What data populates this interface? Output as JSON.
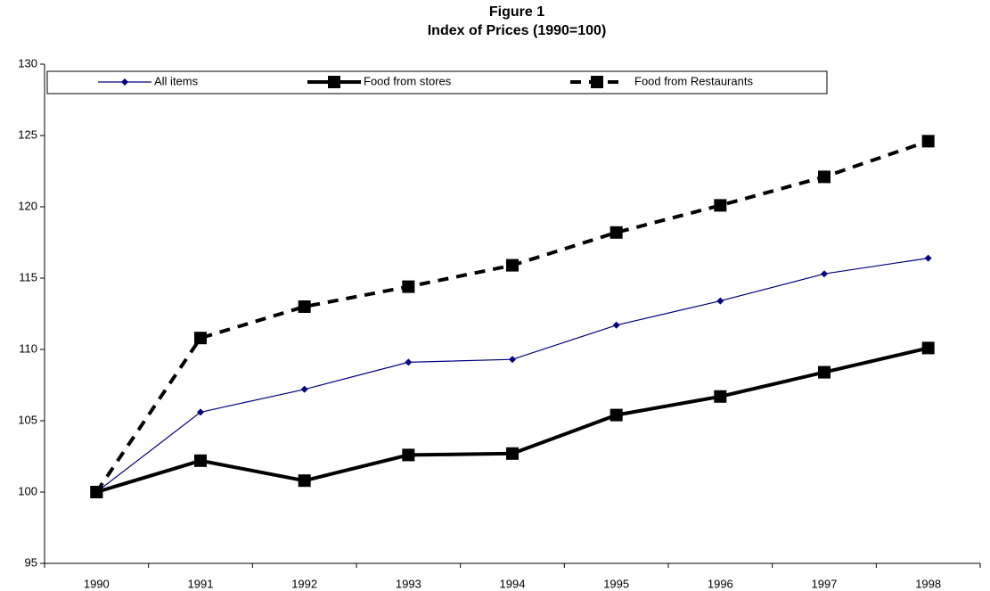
{
  "chart_data": {
    "type": "line",
    "title": "Figure 1",
    "subtitle": "Index of Prices (1990=100)",
    "categories": [
      "1990",
      "1991",
      "1992",
      "1993",
      "1994",
      "1995",
      "1996",
      "1997",
      "1998"
    ],
    "series": [
      {
        "name": "All items",
        "color": "#000080",
        "marker": "diamond",
        "line_style": "solid",
        "line_width": 1.2,
        "values": [
          100,
          105.6,
          107.2,
          109.1,
          109.3,
          111.7,
          113.4,
          115.3,
          116.4
        ]
      },
      {
        "name": "Food from stores",
        "color": "#000000",
        "marker": "square",
        "line_style": "solid",
        "line_width": 4,
        "values": [
          100,
          102.2,
          100.8,
          102.6,
          102.7,
          105.4,
          106.7,
          108.4,
          110.1
        ]
      },
      {
        "name": "Food from Restaurants",
        "color": "#000000",
        "marker": "square",
        "line_style": "dashed",
        "line_width": 4,
        "values": [
          100,
          110.8,
          113.0,
          114.4,
          115.9,
          118.2,
          120.1,
          122.1,
          124.6
        ]
      }
    ],
    "ylim": [
      95,
      130
    ],
    "yticks": [
      95,
      100,
      105,
      110,
      115,
      120,
      125,
      130
    ],
    "grid": false,
    "legend": "top"
  }
}
